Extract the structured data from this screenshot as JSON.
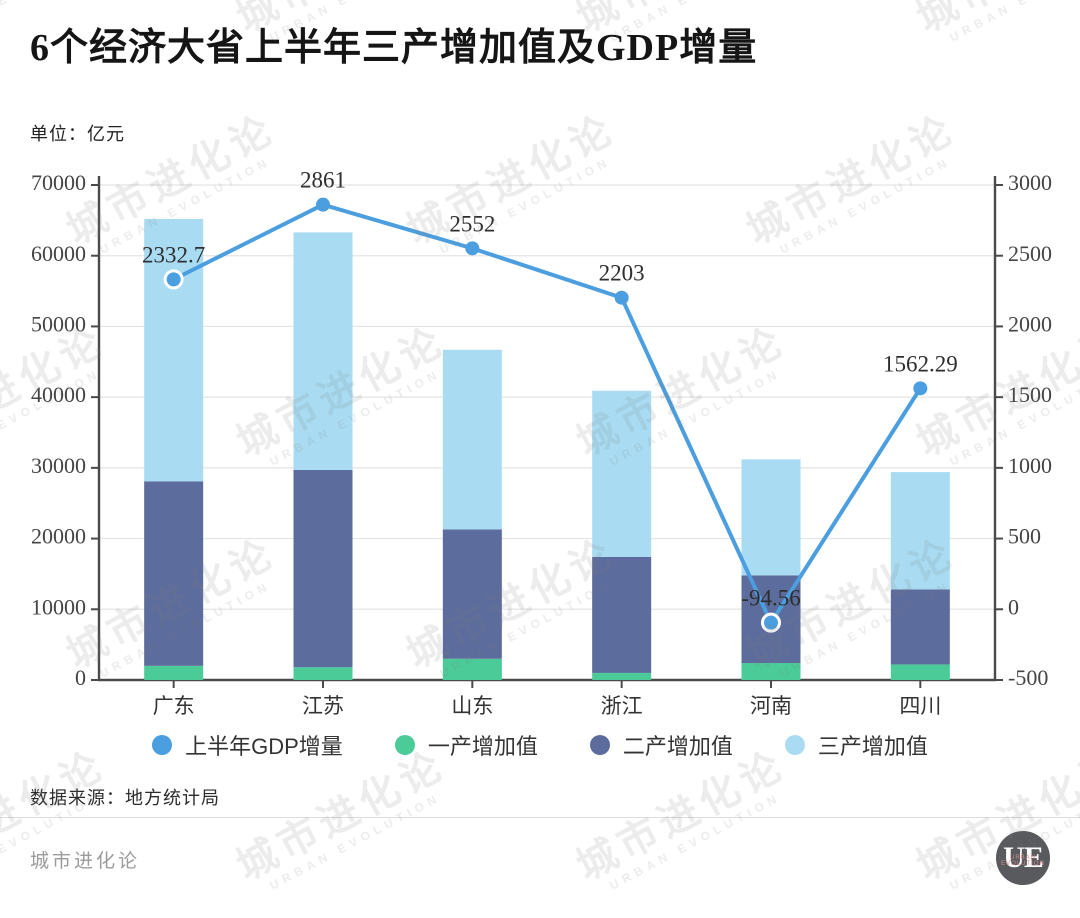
{
  "header": {
    "title": "6个经济大省上半年三产增加值及GDP增量",
    "unit": "单位：亿元"
  },
  "chart_data": {
    "type": "combo",
    "categories": [
      "广东",
      "江苏",
      "山东",
      "浙江",
      "河南",
      "四川"
    ],
    "bar_series": [
      {
        "name": "一产增加值",
        "color": "#4ACB98",
        "values": [
          2000,
          1800,
          3000,
          1000,
          2400,
          2200
        ]
      },
      {
        "name": "二产增加值",
        "color": "#5C6C9C",
        "values": [
          26100,
          27900,
          18300,
          16400,
          12400,
          10600
        ]
      },
      {
        "name": "三产增加值",
        "color": "#A9DCF3",
        "values": [
          37100,
          33600,
          25400,
          23500,
          16400,
          16600
        ]
      }
    ],
    "line_series": {
      "name": "上半年GDP增量",
      "color": "#4B9EDF",
      "values": [
        2332.7,
        2861,
        2552,
        2203,
        -94.56,
        1562.29
      ],
      "labels": [
        "2332.7",
        "2861",
        "2552",
        "2203",
        "-94.56",
        "1562.29"
      ],
      "ring_marker_indices": [
        0,
        4
      ]
    },
    "left_axis": {
      "min": 0,
      "max": 70000,
      "step": 10000
    },
    "right_axis": {
      "min": -500,
      "max": 3000,
      "step": 500
    },
    "grid": true,
    "legend_position": "bottom",
    "stacked": true,
    "title": "6个经济大省上半年三产增加值及GDP增量",
    "ylabel_unit": "亿元"
  },
  "legend": {
    "items": [
      {
        "label": "上半年GDP增量",
        "color": "#4B9EDF"
      },
      {
        "label": "一产增加值",
        "color": "#4ACB98"
      },
      {
        "label": "二产增加值",
        "color": "#5C6C9C"
      },
      {
        "label": "三产增加值",
        "color": "#A9DCF3"
      }
    ]
  },
  "footer": {
    "source": "数据来源：地方统计局",
    "brand": "城市进化论"
  },
  "logo": {
    "text": "UE",
    "subtext": "URBAN EVOLUTION"
  },
  "watermark": {
    "line1": "城市进化论",
    "line2": "URBAN EVOLUTION"
  },
  "colors": {
    "axis": "#4A4A4A",
    "grid": "#E4E4E4",
    "tick_text": "#444444",
    "data_label": "#2E2E2E",
    "category_text": "#333333"
  }
}
